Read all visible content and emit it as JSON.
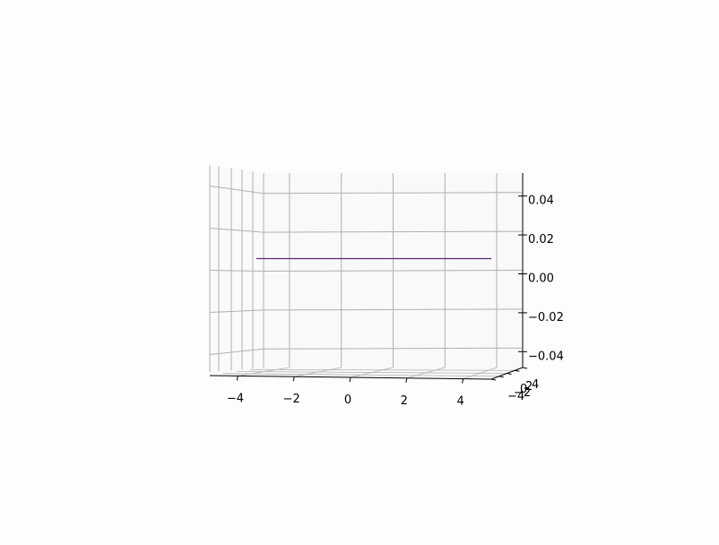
{
  "chart_data": {
    "type": "surface-3d",
    "title": "",
    "xlabel": "",
    "ylabel": "",
    "zlabel": "",
    "grid": true,
    "x_ticks": [
      "−4",
      "−2",
      "0",
      "2",
      "4"
    ],
    "y_ticks": [
      "−4",
      "−2",
      "0",
      "2",
      "4"
    ],
    "z_ticks": [
      "0.04",
      "0.02",
      "0.00",
      "−0.02",
      "−0.04"
    ],
    "xlim": [
      -5,
      5
    ],
    "ylim": [
      -5,
      5
    ],
    "zlim": [
      -0.05,
      0.05
    ],
    "surface": {
      "z_value": 0.0,
      "x_range": [
        -5,
        5
      ],
      "y_range": [
        -5,
        5
      ],
      "color": "#5b2c6f"
    },
    "colors": {
      "grid": "#b0b0b0",
      "pane": "#f2f2f2",
      "axis": "#000000",
      "surface": "#5b2c6f"
    }
  }
}
